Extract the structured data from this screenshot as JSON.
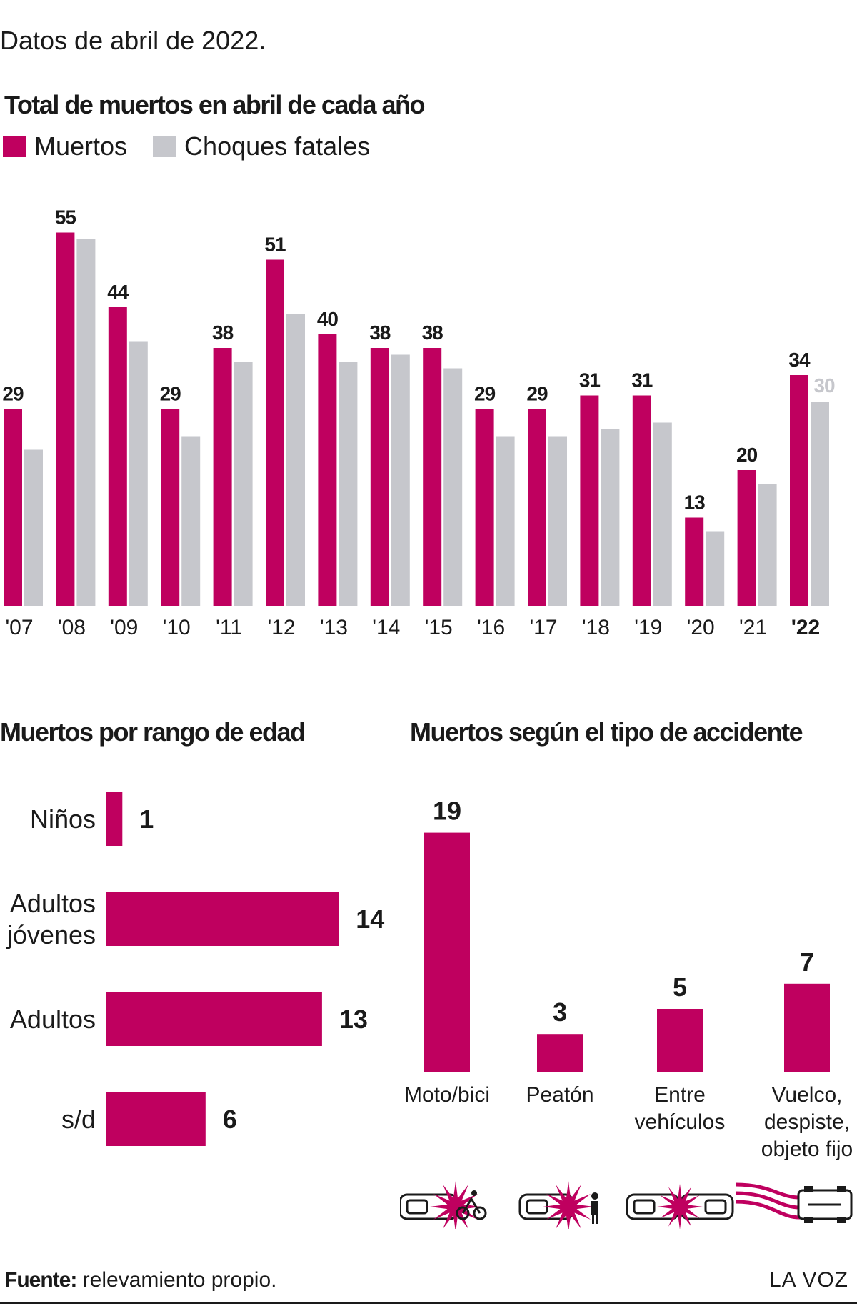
{
  "subtitle": "Datos de abril de 2022.",
  "colors": {
    "accent": "#bf005f",
    "gray": "#c6c7cc",
    "text": "#1a1a1a"
  },
  "icons": [
    "moto-crash-icon",
    "pedestrian-crash-icon",
    "vehicle-collision-icon",
    "rollover-icon"
  ],
  "chart_data": [
    {
      "type": "bar",
      "title": "Total de muertos en abril de cada año",
      "categories": [
        "'07",
        "'08",
        "'09",
        "'10",
        "'11",
        "'12",
        "'13",
        "'14",
        "'15",
        "'16",
        "'17",
        "'18",
        "'19",
        "'20",
        "'21",
        "'22"
      ],
      "series": [
        {
          "name": "Muertos",
          "color": "#bf005f",
          "values": [
            29,
            55,
            44,
            29,
            38,
            51,
            40,
            38,
            38,
            29,
            29,
            31,
            31,
            13,
            20,
            34
          ],
          "labels": [
            "29",
            "55",
            "44",
            "29",
            "38",
            "51",
            "40",
            "38",
            "38",
            "29",
            "29",
            "31",
            "31",
            "13",
            "20",
            "34"
          ]
        },
        {
          "name": "Choques fatales",
          "color": "#c6c7cc",
          "values": [
            23,
            54,
            39,
            25,
            36,
            43,
            36,
            37,
            35,
            25,
            25,
            26,
            27,
            11,
            18,
            30
          ],
          "labels": [
            "",
            "",
            "",
            "",
            "",
            "",
            "",
            "",
            "",
            "",
            "",
            "",
            "",
            "",
            "",
            "30"
          ]
        }
      ],
      "ylim": [
        0,
        56
      ],
      "legend": "top-left",
      "grid": false
    },
    {
      "type": "bar",
      "orientation": "horizontal",
      "title": "Muertos por rango de edad",
      "categories": [
        [
          "Niños"
        ],
        [
          "Adultos",
          "jóvenes"
        ],
        [
          "Adultos"
        ],
        [
          "s/d"
        ]
      ],
      "values": [
        1,
        14,
        13,
        6
      ],
      "labels": [
        "1",
        "14",
        "13",
        "6"
      ],
      "xlim": [
        0,
        14
      ]
    },
    {
      "type": "bar",
      "title": "Muertos según el tipo de accidente",
      "categories": [
        [
          "Moto/bici"
        ],
        [
          "Peatón"
        ],
        [
          "Entre",
          "vehículos"
        ],
        [
          "Vuelco,",
          "despiste,",
          "objeto fijo"
        ]
      ],
      "values": [
        19,
        3,
        5,
        7
      ],
      "labels": [
        "19",
        "3",
        "5",
        "7"
      ],
      "ylim": [
        0,
        19
      ]
    }
  ],
  "footer": {
    "source_label": "Fuente:",
    "source_text": " relevamiento propio.",
    "brand": "LA VOZ"
  }
}
